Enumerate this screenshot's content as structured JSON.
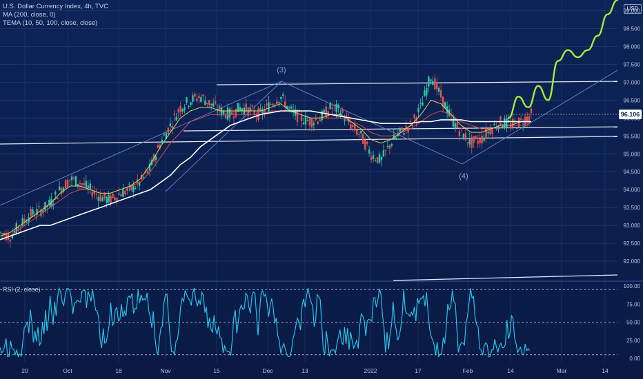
{
  "header": {
    "title": "U.S. Dollar Currency Index, 4h, TVC",
    "indicator_ma": "MA (200, close, 0)",
    "indicator_tema": "TEMA (10, 50, 100, close, close)",
    "currency": "USD"
  },
  "rsi_panel": {
    "label": "RSI (2, close)"
  },
  "current_price": "96.106",
  "colors": {
    "background": "#0b1e4d",
    "projection": "#a6ec3a",
    "rsi": "#27c3e8",
    "ma200": "#ffffff",
    "tema_fast": "#e6d25a",
    "tema_slow": "#d84a4a",
    "candle": "#2ec8a6"
  },
  "chart_data": [
    {
      "type": "line",
      "ylim": [
        91.5,
        99.3
      ],
      "y_ticks": [
        "92.000",
        "92.500",
        "93.000",
        "93.500",
        "94.000",
        "94.500",
        "95.000",
        "95.500",
        "96.000",
        "96.500",
        "97.000",
        "97.500",
        "98.000",
        "98.500",
        "99.000"
      ],
      "x_ticks": [
        "20",
        "Oct",
        "18",
        "Nov",
        "15",
        "Dec",
        "13",
        "2022",
        "17",
        "Feb",
        "14",
        "Mar",
        "14"
      ],
      "annotations": [
        "(3)",
        "(4)"
      ],
      "series": [
        {
          "values": [
            92.8,
            92.7,
            93.0,
            93.3,
            93.4,
            93.6,
            94.0,
            94.3,
            94.2,
            94.0,
            93.8,
            93.7,
            93.9,
            94.0,
            94.2,
            94.6,
            95.3,
            95.8,
            96.3,
            96.5,
            96.6,
            96.4,
            96.2,
            96.1,
            96.3,
            96.2,
            96.1,
            96.4,
            96.6,
            96.2,
            96.0,
            95.9,
            96.0,
            96.3,
            96.2,
            95.8,
            95.5,
            95.0,
            94.8,
            95.3,
            95.6,
            95.8,
            96.3,
            97.2,
            96.6,
            96.0,
            95.6,
            95.3,
            95.4,
            95.7,
            95.9,
            95.8,
            95.9,
            96.1
          ]
        },
        {
          "values": [
            92.7,
            92.8,
            93.0,
            93.2,
            93.4,
            93.6,
            93.9,
            94.1,
            94.1,
            94.0,
            93.9,
            93.9,
            94.0,
            94.1,
            94.3,
            94.7,
            95.2,
            95.6,
            96.0,
            96.2,
            96.3,
            96.3,
            96.2,
            96.2,
            96.2,
            96.2,
            96.2,
            96.3,
            96.4,
            96.2,
            96.1,
            96.0,
            96.0,
            96.1,
            96.1,
            95.9,
            95.7,
            95.4,
            95.3,
            95.4,
            95.6,
            95.8,
            96.1,
            96.5,
            96.4,
            96.1,
            95.8,
            95.6,
            95.6,
            95.7,
            95.8,
            95.8,
            95.9,
            95.9
          ]
        },
        {
          "values": [
            92.6,
            92.7,
            92.9,
            93.1,
            93.3,
            93.5,
            93.7,
            93.9,
            94.0,
            94.0,
            93.9,
            93.9,
            94.0,
            94.1,
            94.2,
            94.5,
            94.9,
            95.3,
            95.6,
            95.9,
            96.0,
            96.1,
            96.1,
            96.1,
            96.1,
            96.1,
            96.1,
            96.2,
            96.2,
            96.2,
            96.1,
            96.0,
            96.0,
            96.0,
            96.0,
            95.9,
            95.8,
            95.6,
            95.5,
            95.5,
            95.6,
            95.7,
            95.9,
            96.1,
            96.2,
            96.1,
            95.9,
            95.8,
            95.7,
            95.7,
            95.8,
            95.8,
            95.8,
            95.9
          ]
        },
        {
          "values": [
            92.6,
            92.7,
            92.8,
            92.9,
            93.0,
            93.0,
            93.1,
            93.2,
            93.3,
            93.4,
            93.5,
            93.6,
            93.7,
            93.8,
            93.9,
            94.0,
            94.2,
            94.4,
            94.7,
            94.9,
            95.2,
            95.4,
            95.6,
            95.8,
            95.9,
            96.0,
            96.1,
            96.15,
            96.2,
            96.2,
            96.2,
            96.2,
            96.15,
            96.1,
            96.05,
            96.0,
            95.95,
            95.9,
            95.85,
            95.85,
            95.85,
            95.85,
            95.9,
            95.9,
            95.95,
            95.95,
            95.95,
            95.9,
            95.9,
            95.9,
            95.9,
            95.9,
            95.9,
            95.9
          ]
        },
        {
          "values": [
            96.0,
            96.6,
            96.3,
            96.9,
            96.5,
            97.6,
            97.9,
            97.7,
            97.9,
            98.3,
            98.9,
            99.3
          ]
        }
      ]
    },
    {
      "type": "line",
      "ylim": [
        0,
        100
      ],
      "y_ticks": [
        "100.00",
        "75.00",
        "50.00",
        "25.00",
        "0.00"
      ],
      "levels": [
        95,
        50,
        5
      ]
    }
  ]
}
